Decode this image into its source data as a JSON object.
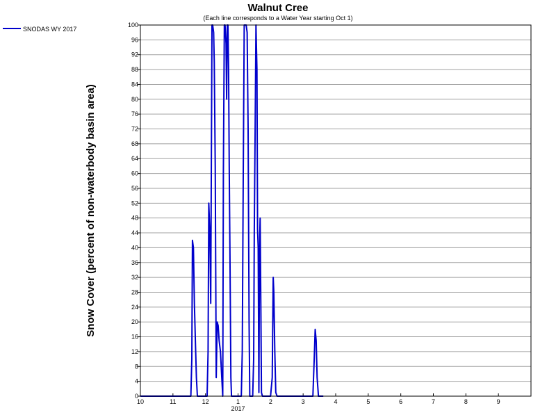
{
  "chart_data": {
    "type": "line",
    "title": "Walnut Cree",
    "subtitle": "(Each line corresponds to a Water Year starting Oct 1)",
    "xlabel": "",
    "ylabel": "Snow Cover (percent of non-waterbody basin area)",
    "ylim": [
      0,
      100
    ],
    "xlim": [
      0,
      12
    ],
    "y_ticks": [
      0,
      4,
      8,
      12,
      16,
      20,
      24,
      28,
      32,
      36,
      40,
      44,
      48,
      52,
      56,
      60,
      64,
      68,
      72,
      76,
      80,
      84,
      88,
      92,
      96,
      100
    ],
    "x_ticks": [
      {
        "x": 0,
        "label": "10"
      },
      {
        "x": 1,
        "label": "11"
      },
      {
        "x": 2,
        "label": "12"
      },
      {
        "x": 3,
        "label": "1"
      },
      {
        "x": 4,
        "label": "2"
      },
      {
        "x": 5,
        "label": "3"
      },
      {
        "x": 6,
        "label": "4"
      },
      {
        "x": 7,
        "label": "5"
      },
      {
        "x": 8,
        "label": "6"
      },
      {
        "x": 9,
        "label": "7"
      },
      {
        "x": 10,
        "label": "8"
      },
      {
        "x": 11,
        "label": "9"
      }
    ],
    "year_label": {
      "x": 3,
      "label": "2017"
    },
    "grid": "horizontal",
    "legend_placement": "top-left-outside",
    "series": [
      {
        "name": "SNODAS WY 2017",
        "color": "#0000cc",
        "points": [
          [
            0,
            0
          ],
          [
            1.55,
            0
          ],
          [
            1.58,
            10
          ],
          [
            1.6,
            42
          ],
          [
            1.63,
            40
          ],
          [
            1.66,
            25
          ],
          [
            1.69,
            15
          ],
          [
            1.72,
            5
          ],
          [
            1.75,
            0
          ],
          [
            2.05,
            0
          ],
          [
            2.08,
            12
          ],
          [
            2.1,
            52
          ],
          [
            2.13,
            45
          ],
          [
            2.16,
            25
          ],
          [
            2.2,
            100
          ],
          [
            2.22,
            100
          ],
          [
            2.25,
            98
          ],
          [
            2.27,
            90
          ],
          [
            2.3,
            62
          ],
          [
            2.33,
            5
          ],
          [
            2.36,
            20
          ],
          [
            2.39,
            19
          ],
          [
            2.42,
            15
          ],
          [
            2.46,
            12
          ],
          [
            2.5,
            5
          ],
          [
            2.53,
            0
          ],
          [
            2.55,
            60
          ],
          [
            2.58,
            100
          ],
          [
            2.6,
            100
          ],
          [
            2.63,
            95
          ],
          [
            2.65,
            80
          ],
          [
            2.67,
            100
          ],
          [
            2.69,
            100
          ],
          [
            2.71,
            88
          ],
          [
            2.73,
            60
          ],
          [
            2.75,
            40
          ],
          [
            2.78,
            5
          ],
          [
            2.8,
            0
          ],
          [
            3.1,
            0
          ],
          [
            3.13,
            12
          ],
          [
            3.16,
            60
          ],
          [
            3.19,
            100
          ],
          [
            3.22,
            100
          ],
          [
            3.25,
            100
          ],
          [
            3.28,
            98
          ],
          [
            3.31,
            72
          ],
          [
            3.34,
            20
          ],
          [
            3.36,
            0
          ],
          [
            3.45,
            0
          ],
          [
            3.48,
            10
          ],
          [
            3.5,
            45
          ],
          [
            3.53,
            76
          ],
          [
            3.55,
            100
          ],
          [
            3.58,
            88
          ],
          [
            3.6,
            45
          ],
          [
            3.62,
            40
          ],
          [
            3.64,
            1
          ],
          [
            3.66,
            40
          ],
          [
            3.68,
            48
          ],
          [
            3.7,
            25
          ],
          [
            3.72,
            1
          ],
          [
            3.75,
            0
          ],
          [
            4.0,
            0
          ],
          [
            4.05,
            5
          ],
          [
            4.08,
            32
          ],
          [
            4.1,
            28
          ],
          [
            4.13,
            12
          ],
          [
            4.16,
            1
          ],
          [
            4.2,
            0
          ],
          [
            5.3,
            0
          ],
          [
            5.34,
            10
          ],
          [
            5.37,
            18
          ],
          [
            5.4,
            15
          ],
          [
            5.43,
            5
          ],
          [
            5.47,
            0
          ],
          [
            5.62,
            0
          ]
        ]
      }
    ]
  }
}
